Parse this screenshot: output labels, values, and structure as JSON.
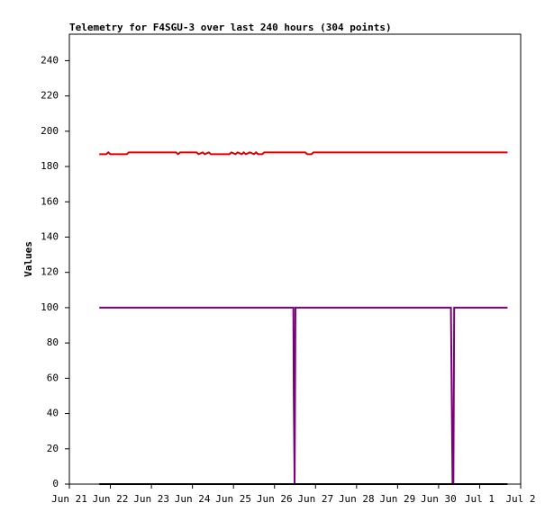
{
  "chart_data": {
    "type": "line",
    "title": "Telemetry for F4SGU-3 over last 240 hours (304 points)",
    "y_label": "Values",
    "xlim": [
      0,
      11
    ],
    "xticks": [
      {
        "value": 0,
        "label": "Jun 21"
      },
      {
        "value": 1,
        "label": "Jun 22"
      },
      {
        "value": 2,
        "label": "Jun 23"
      },
      {
        "value": 3,
        "label": "Jun 24"
      },
      {
        "value": 4,
        "label": "Jun 25"
      },
      {
        "value": 5,
        "label": "Jun 26"
      },
      {
        "value": 6,
        "label": "Jun 27"
      },
      {
        "value": 7,
        "label": "Jun 28"
      },
      {
        "value": 8,
        "label": "Jun 29"
      },
      {
        "value": 9,
        "label": "Jun 30"
      },
      {
        "value": 10,
        "label": "Jul 1"
      },
      {
        "value": 11,
        "label": "Jul 2"
      }
    ],
    "ylim": [
      0,
      255
    ],
    "yticks": [
      0,
      20,
      40,
      60,
      80,
      100,
      120,
      140,
      160,
      180,
      200,
      220,
      240
    ],
    "grid": false,
    "series": [
      {
        "color": "#dd0000",
        "x": [
          0.73,
          0.9,
          0.95,
          1.0,
          1.4,
          1.45,
          2.6,
          2.65,
          2.7,
          3.1,
          3.15,
          3.25,
          3.3,
          3.4,
          3.45,
          3.6,
          3.9,
          3.95,
          4.05,
          4.1,
          4.2,
          4.25,
          4.3,
          4.4,
          4.5,
          4.55,
          4.6,
          4.7,
          4.75,
          5.75,
          5.8,
          5.9,
          5.95,
          10.68
        ],
        "values": [
          187,
          187,
          188,
          187,
          187,
          188,
          188,
          187,
          188,
          188,
          187,
          188,
          187,
          188,
          187,
          187,
          187,
          188,
          187,
          188,
          187,
          188,
          187,
          188,
          187,
          188,
          187,
          187,
          188,
          188,
          187,
          187,
          188,
          188
        ]
      },
      {
        "color": "#7a007a",
        "x": [
          0.73,
          5.46,
          5.47,
          5.49,
          5.51,
          9.3,
          9.32,
          9.34,
          9.36,
          9.38,
          10.68
        ],
        "values": [
          100,
          100,
          50,
          0,
          100,
          100,
          50,
          0,
          0,
          100,
          100
        ]
      },
      {
        "color": "#000000",
        "x": [
          0.73,
          10.68
        ],
        "values": [
          0,
          0
        ]
      }
    ]
  }
}
